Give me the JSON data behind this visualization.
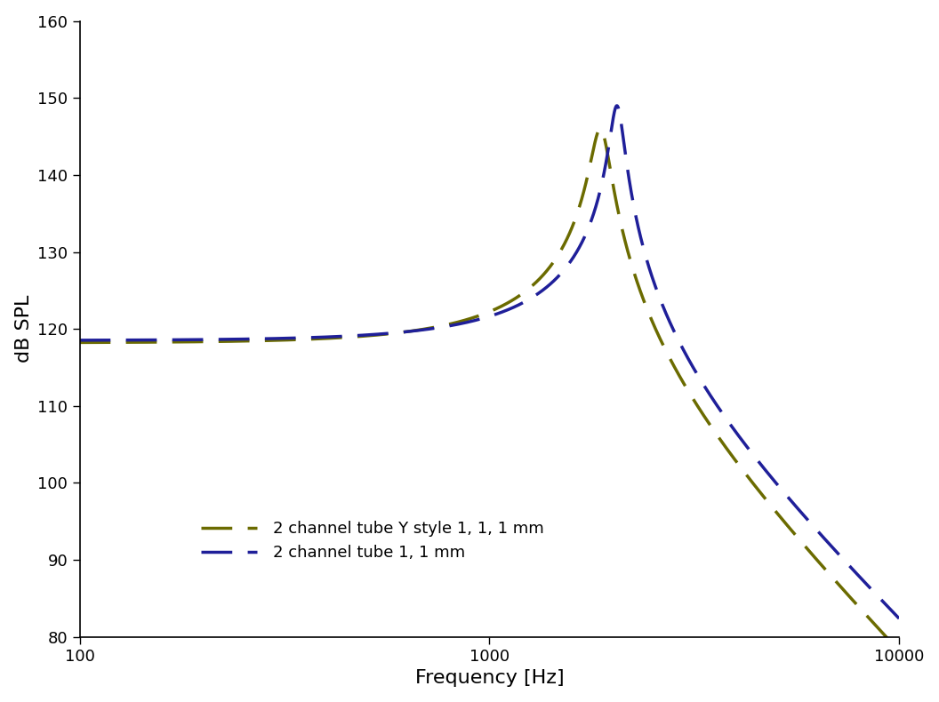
{
  "title": "",
  "xlabel": "Frequency [Hz]",
  "ylabel": "dB SPL",
  "xlim": [
    100,
    10000
  ],
  "ylim": [
    80,
    160
  ],
  "yticks": [
    80,
    90,
    100,
    110,
    120,
    130,
    140,
    150,
    160
  ],
  "line1_color": "#1f1f99",
  "line2_color": "#6b6b00",
  "line1_label": "2 channel tube 1, 1 mm",
  "line2_label": "2 channel tube Y style 1, 1, 1 mm",
  "line_width": 2.5,
  "dash_pattern": [
    10,
    5
  ],
  "figsize": [
    10.56,
    7.9
  ],
  "dpi": 100,
  "background_color": "#ffffff",
  "spine_color": "#000000",
  "fontsize_labels": 16,
  "fontsize_ticks": 13,
  "fontsize_legend": 13,
  "blue_f0": 2050,
  "blue_Q": 14.0,
  "blue_base": 118.5,
  "blue_peak": 149.0,
  "olive_f0": 1870,
  "olive_Q": 10.0,
  "olive_base": 118.2,
  "olive_peak": 146.0
}
